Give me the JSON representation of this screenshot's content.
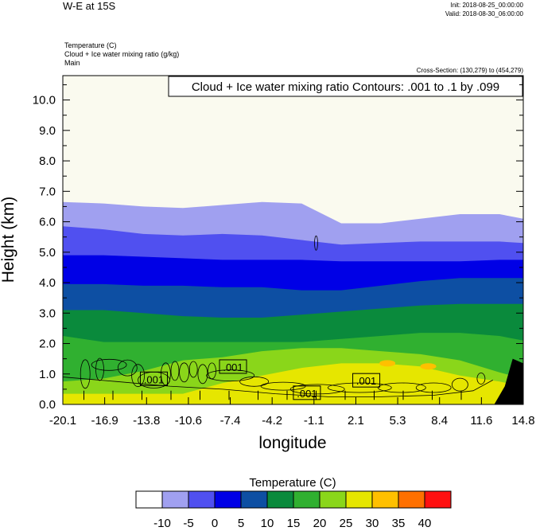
{
  "header": {
    "title": "W-E at 15S",
    "init": "Init: 2018-08-25_00:00:00",
    "valid": "Valid: 2018-08-30_06:00:00",
    "field1": "Temperature   (C)",
    "field2": "Cloud + Ice water mixing ratio   (g/kg)",
    "field3": "Main",
    "cross_section": "Cross-Section: (130,279) to (454,279)"
  },
  "chart_data": {
    "type": "heatmap",
    "contour_label": "Cloud + Ice water mixing ratio Contours: .001 to .1 by .099",
    "xlabel": "longitude",
    "ylabel": "Height (km)",
    "xticks": [
      "-20.1",
      "-16.9",
      "-13.8",
      "-10.6",
      "-7.4",
      "-4.2",
      "-1.1",
      "2.1",
      "5.3",
      "8.4",
      "11.6",
      "14.8"
    ],
    "xlim": [
      -20.1,
      14.8
    ],
    "yticks": [
      "0.0",
      "1.0",
      "2.0",
      "3.0",
      "4.0",
      "5.0",
      "6.0",
      "7.0",
      "8.0",
      "9.0",
      "10.0"
    ],
    "ylim": [
      0,
      10.8
    ],
    "contour_labels": [
      {
        "text": ".001",
        "x": -13.2,
        "y": 0.83
      },
      {
        "text": ".001",
        "x": -7.2,
        "y": 1.23
      },
      {
        "text": ".001",
        "x": -1.6,
        "y": 0.37
      },
      {
        "text": ".001",
        "x": 2.9,
        "y": 0.78
      }
    ],
    "temperature_boundaries": {
      "x": [
        -20.1,
        -17,
        -14,
        -11,
        -8,
        -5,
        -2,
        1,
        4,
        7,
        10,
        13,
        14.8
      ],
      "levels": [
        {
          "value": -10,
          "height": [
            6.65,
            6.6,
            6.5,
            6.45,
            6.55,
            6.65,
            6.6,
            5.95,
            5.95,
            6.1,
            6.25,
            6.25,
            6.1
          ]
        },
        {
          "value": -5,
          "height": [
            5.85,
            5.75,
            5.6,
            5.55,
            5.6,
            5.55,
            5.4,
            5.25,
            5.3,
            5.35,
            5.35,
            5.35,
            5.3
          ]
        },
        {
          "value": 0,
          "height": [
            4.9,
            4.9,
            4.85,
            4.8,
            4.75,
            4.75,
            4.75,
            4.7,
            4.7,
            4.7,
            4.7,
            4.75,
            4.75
          ]
        },
        {
          "value": 5,
          "height": [
            3.95,
            3.95,
            3.9,
            3.9,
            3.85,
            3.85,
            3.75,
            3.75,
            3.9,
            4.05,
            4.15,
            4.15,
            4.15
          ]
        },
        {
          "value": 10,
          "height": [
            3.1,
            3.1,
            3.0,
            2.9,
            2.85,
            2.85,
            2.95,
            3.05,
            3.15,
            3.25,
            3.3,
            3.3,
            3.3
          ]
        },
        {
          "value": 15,
          "height": [
            2.25,
            2.05,
            2.05,
            2.05,
            2.05,
            2.05,
            2.05,
            2.15,
            2.25,
            2.35,
            2.35,
            2.25,
            2.1
          ]
        },
        {
          "value": 20,
          "height": [
            0.75,
            0.85,
            1.1,
            1.45,
            1.55,
            1.75,
            1.85,
            1.85,
            1.75,
            1.65,
            1.45,
            1.05,
            0.85
          ]
        },
        {
          "value": 25,
          "height": [
            0.35,
            0.35,
            0.35,
            0.35,
            0.7,
            0.95,
            1.2,
            1.35,
            1.35,
            1.25,
            0.95,
            0.75,
            0.6
          ]
        }
      ]
    },
    "warm_patches": [
      {
        "value": 30,
        "x": 7.6,
        "y": 1.25
      },
      {
        "value": 30,
        "x": 4.5,
        "y": 1.35
      }
    ],
    "terrain": {
      "x": [
        12.6,
        13.4,
        14.0,
        14.8
      ],
      "height": [
        0.0,
        0.6,
        1.5,
        1.35
      ]
    },
    "colorbar": {
      "title": "Temperature  (C)",
      "labels": [
        "-10",
        "-5",
        "0",
        "5",
        "10",
        "15",
        "20",
        "25",
        "30",
        "35",
        "40"
      ],
      "colors": [
        "#ffffff",
        "#a0a0f0",
        "#5050f0",
        "#0000e6",
        "#0d4fa3",
        "#0a8a3c",
        "#30b030",
        "#8ad61a",
        "#e6e600",
        "#ffc000",
        "#ff7000",
        "#ff1010"
      ]
    }
  }
}
